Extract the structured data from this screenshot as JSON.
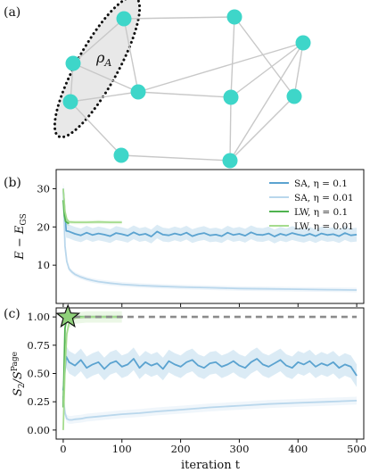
{
  "panel_labels": {
    "a": "(a)",
    "b": "(b)",
    "c": "(c)"
  },
  "graph": {
    "region_label": "ρ",
    "region_label_sub": "A",
    "node_color": "#3ed6c9",
    "edge_color": "#c8c8c8",
    "region_fill": "#e8e8e8",
    "node_ids": [
      "n0",
      "n1",
      "n2",
      "n3",
      "n4",
      "n5",
      "n6",
      "n7",
      "n8",
      "n9"
    ],
    "region_nodes": [
      "n0",
      "n1",
      "n2"
    ],
    "edges": [
      [
        "n0",
        "n1"
      ],
      [
        "n1",
        "n2"
      ],
      [
        "n0",
        "n3"
      ],
      [
        "n0",
        "n4"
      ],
      [
        "n1",
        "n3"
      ],
      [
        "n2",
        "n3"
      ],
      [
        "n2",
        "n5"
      ],
      [
        "n3",
        "n6"
      ],
      [
        "n3",
        "n7"
      ],
      [
        "n4",
        "n6"
      ],
      [
        "n4",
        "n8"
      ],
      [
        "n6",
        "n7"
      ],
      [
        "n6",
        "n9"
      ],
      [
        "n7",
        "n8"
      ],
      [
        "n7",
        "n9"
      ],
      [
        "n5",
        "n9"
      ],
      [
        "n8",
        "n9"
      ]
    ]
  },
  "colors": {
    "sa_01": "#5ba3d0",
    "sa_001": "#b9d7ec",
    "lw_01": "#4fb34f",
    "lw_001": "#a5dc8e",
    "page": "#8c8c8c",
    "star": "#8fd17a"
  },
  "chart_data": [
    {
      "type": "line",
      "panel": "(b)",
      "xlabel": "",
      "ylabel_main": "E − E",
      "ylabel_sub": "GS",
      "xlim": [
        -12,
        512
      ],
      "ylim": [
        0,
        35
      ],
      "yticks": [
        10,
        20,
        30
      ],
      "xticks": [
        0,
        100,
        200,
        300,
        400,
        500
      ],
      "legend_position": "top-right",
      "series": [
        {
          "name": "SA, η = 0.1",
          "key": "sa_01",
          "x": [
            0,
            5,
            10,
            20,
            30,
            40,
            50,
            60,
            70,
            80,
            90,
            100,
            110,
            120,
            130,
            140,
            150,
            160,
            170,
            180,
            190,
            200,
            210,
            220,
            230,
            240,
            250,
            260,
            270,
            280,
            290,
            300,
            310,
            320,
            330,
            340,
            350,
            360,
            370,
            380,
            390,
            400,
            410,
            420,
            430,
            440,
            450,
            460,
            470,
            480,
            490,
            500
          ],
          "y": [
            30,
            19,
            18.8,
            18.2,
            17.8,
            18.5,
            17.9,
            18.3,
            18.0,
            17.6,
            18.4,
            18.1,
            17.7,
            18.6,
            17.9,
            18.2,
            17.5,
            18.8,
            18.0,
            17.8,
            18.3,
            17.9,
            18.5,
            17.6,
            18.1,
            18.4,
            17.8,
            18.0,
            17.6,
            18.5,
            17.9,
            18.2,
            17.7,
            18.6,
            18.0,
            17.9,
            18.3,
            17.5,
            18.2,
            17.8,
            18.4,
            18.0,
            17.7,
            18.2,
            17.6,
            18.3,
            17.9,
            18.1,
            17.6,
            18.4,
            17.8,
            18.0
          ],
          "band": 1.8
        },
        {
          "name": "SA, η = 0.01",
          "key": "sa_001",
          "x": [
            0,
            3,
            6,
            10,
            15,
            20,
            30,
            40,
            50,
            60,
            80,
            100,
            130,
            160,
            200,
            250,
            300,
            350,
            400,
            450,
            500
          ],
          "y": [
            30,
            15,
            11,
            9,
            8.2,
            7.6,
            6.9,
            6.4,
            6.0,
            5.7,
            5.3,
            5.0,
            4.7,
            4.5,
            4.3,
            4.1,
            3.9,
            3.8,
            3.7,
            3.6,
            3.5
          ],
          "band": 0.6
        },
        {
          "name": "LW, η = 0.1",
          "key": "lw_01",
          "x": [
            0,
            2,
            4,
            6,
            8,
            10
          ],
          "y": [
            27,
            23,
            21.5,
            21.2,
            21.0,
            21.0
          ],
          "band": 0.6
        },
        {
          "name": "LW, η = 0.01",
          "key": "lw_001",
          "x": [
            0,
            3,
            6,
            10,
            20,
            40,
            60,
            80,
            100
          ],
          "y": [
            30,
            24,
            22,
            21.3,
            21.2,
            21.2,
            21.3,
            21.2,
            21.2
          ],
          "band": 0.5
        }
      ]
    },
    {
      "type": "line",
      "panel": "(c)",
      "xlabel": "iteration t",
      "ylabel_main": "S",
      "ylabel_sub": "2",
      "ylabel_mid": "/S",
      "ylabel_sup": "Page",
      "xlim": [
        -12,
        512
      ],
      "ylim": [
        -0.08,
        1.08
      ],
      "yticks": [
        0.0,
        0.25,
        0.5,
        0.75,
        1.0
      ],
      "ytick_labels": [
        "0.00",
        "0.25",
        "0.50",
        "0.75",
        "1.00"
      ],
      "xticks": [
        0,
        100,
        200,
        300,
        400,
        500
      ],
      "series": [
        {
          "key": "sa_01",
          "x": [
            0,
            5,
            10,
            20,
            30,
            40,
            50,
            60,
            70,
            80,
            90,
            100,
            110,
            120,
            130,
            140,
            150,
            160,
            170,
            180,
            190,
            200,
            210,
            220,
            230,
            240,
            250,
            260,
            270,
            280,
            290,
            300,
            310,
            320,
            330,
            340,
            350,
            360,
            370,
            380,
            390,
            400,
            410,
            420,
            430,
            440,
            450,
            460,
            470,
            480,
            490,
            500
          ],
          "y": [
            0.35,
            0.65,
            0.6,
            0.57,
            0.62,
            0.55,
            0.58,
            0.6,
            0.54,
            0.59,
            0.61,
            0.56,
            0.58,
            0.63,
            0.55,
            0.6,
            0.57,
            0.59,
            0.54,
            0.61,
            0.58,
            0.56,
            0.6,
            0.62,
            0.57,
            0.55,
            0.59,
            0.6,
            0.56,
            0.58,
            0.61,
            0.57,
            0.55,
            0.6,
            0.63,
            0.58,
            0.56,
            0.59,
            0.62,
            0.57,
            0.55,
            0.6,
            0.58,
            0.61,
            0.56,
            0.59,
            0.57,
            0.6,
            0.55,
            0.58,
            0.56,
            0.48
          ],
          "band": 0.1
        },
        {
          "key": "sa_001",
          "x": [
            0,
            3,
            6,
            10,
            15,
            20,
            30,
            40,
            60,
            80,
            100,
            130,
            160,
            200,
            250,
            300,
            350,
            400,
            450,
            500
          ],
          "y": [
            0.3,
            0.15,
            0.1,
            0.09,
            0.09,
            0.095,
            0.1,
            0.11,
            0.12,
            0.13,
            0.14,
            0.15,
            0.165,
            0.18,
            0.2,
            0.215,
            0.23,
            0.24,
            0.25,
            0.26
          ],
          "band": 0.035
        },
        {
          "key": "lw_01",
          "x": [
            0,
            3,
            6,
            10,
            20,
            40,
            60,
            100
          ],
          "y": [
            0.2,
            0.9,
            0.99,
            1.0,
            1.0,
            1.0,
            1.0,
            1.0
          ],
          "band": 0.015
        },
        {
          "key": "lw_001",
          "x": [
            0,
            3,
            6,
            10,
            20,
            40,
            60,
            100
          ],
          "y": [
            0.0,
            0.55,
            0.85,
            0.95,
            0.99,
            1.0,
            1.0,
            1.0
          ],
          "band": 0.05
        },
        {
          "key": "page",
          "dashed": true,
          "x": [
            0,
            500
          ],
          "y": [
            1.0,
            1.0
          ]
        }
      ],
      "marker": {
        "shape": "star",
        "x": 8,
        "y": 1.0
      }
    }
  ]
}
